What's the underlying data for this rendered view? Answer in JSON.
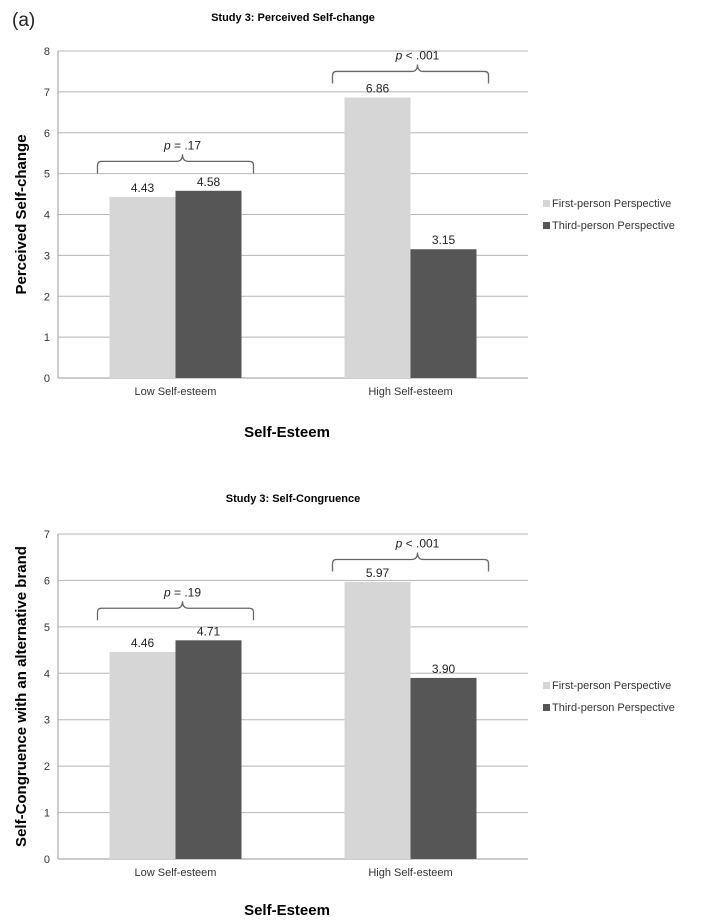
{
  "panel_label": "(a)",
  "small_mark": "",
  "colors": {
    "first": "#d6d6d6",
    "third": "#565656",
    "grid": "#b5b5b5",
    "axis": "#9a9a9a"
  },
  "chart_data": [
    {
      "type": "bar",
      "title": "Study 3: Perceived Self-change",
      "ylabel": "Perceived Self-change",
      "xlabel": "Self-Esteem",
      "categories": [
        "Low Self-esteem",
        "High Self-esteem"
      ],
      "series": [
        {
          "name": "First-person Perspective",
          "values": [
            4.43,
            6.86
          ],
          "labels": [
            "4.43",
            "6.86"
          ]
        },
        {
          "name": "Third-person Perspective",
          "values": [
            4.58,
            3.15
          ],
          "labels": [
            "4.58",
            "3.15"
          ]
        }
      ],
      "ylim": [
        0,
        8
      ],
      "yticks": [
        0,
        1,
        2,
        3,
        4,
        5,
        6,
        7,
        8
      ],
      "grid": true,
      "legend_position": "right",
      "annotations": [
        {
          "category_index": 0,
          "value": "= .17",
          "bracket_y": 5.3
        },
        {
          "category_index": 1,
          "value": "< .001",
          "bracket_y": 7.5
        }
      ]
    },
    {
      "type": "bar",
      "title": "Study 3: Self-Congruence",
      "ylabel": "Self-Congruence with an alternative brand",
      "xlabel": "Self-Esteem",
      "categories": [
        "Low Self-esteem",
        "High Self-esteem"
      ],
      "series": [
        {
          "name": "First-person Perspective",
          "values": [
            4.46,
            5.97
          ],
          "labels": [
            "4.46",
            "5.97"
          ]
        },
        {
          "name": "Third-person Perspective",
          "values": [
            4.71,
            3.9
          ],
          "labels": [
            "4.71",
            "3.90"
          ]
        }
      ],
      "ylim": [
        0,
        7
      ],
      "yticks": [
        0,
        1,
        2,
        3,
        4,
        5,
        6,
        7
      ],
      "grid": true,
      "legend_position": "right",
      "annotations": [
        {
          "category_index": 0,
          "value": "= .19",
          "bracket_y": 5.4
        },
        {
          "category_index": 1,
          "value": "< .001",
          "bracket_y": 6.45
        }
      ]
    }
  ]
}
